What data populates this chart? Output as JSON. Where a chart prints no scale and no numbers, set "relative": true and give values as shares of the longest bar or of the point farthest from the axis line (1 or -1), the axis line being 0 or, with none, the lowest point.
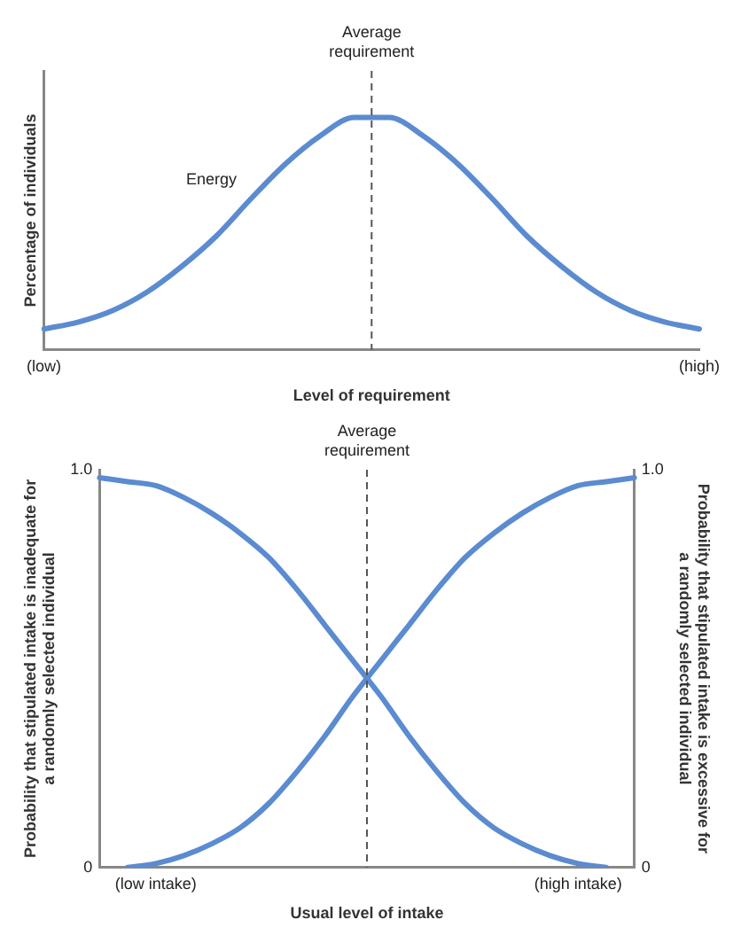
{
  "chart_data": [
    {
      "type": "line",
      "relative": true,
      "xlabel": "Level of requirement",
      "ylabel": "Percentage of individuals",
      "grid": false,
      "legend": false,
      "marker": "none",
      "line_style": "solid",
      "categories": [
        "(low)",
        null,
        null,
        null,
        null,
        null,
        null,
        null,
        null,
        null,
        null,
        null,
        null,
        null,
        null,
        null,
        null,
        null,
        null,
        "(high)"
      ],
      "series": [
        {
          "name": "Energy",
          "color": "#5b8bd0",
          "values": [
            0.09,
            0.12,
            0.17,
            0.25,
            0.36,
            0.49,
            0.65,
            0.8,
            0.92,
            1,
            1,
            0.92,
            0.8,
            0.65,
            0.49,
            0.36,
            0.25,
            0.17,
            0.12,
            0.09
          ]
        }
      ],
      "ref_lines": [
        {
          "axis": "x",
          "label": "Average requirement",
          "color": "#555555",
          "line_style": "dashed"
        }
      ]
    },
    {
      "type": "line",
      "xlabel": "Usual level of intake",
      "ylabel": "Probability that stipulated intake is inadequate for a randomly selected individual",
      "y2label": "Probability that stipulated intake is excessive for a randomly selected individual",
      "ylim": [
        0,
        1
      ],
      "yticks": [
        0,
        {
          "value": 1,
          "label": "1.0"
        }
      ],
      "y2lim": [
        0,
        1
      ],
      "y2ticks": [
        0,
        {
          "value": 1,
          "label": "1.0"
        }
      ],
      "grid": false,
      "legend": false,
      "marker": "none",
      "line_style": "solid",
      "categories": [
        null,
        null,
        "(low intake)",
        null,
        null,
        null,
        null,
        null,
        null,
        null,
        null,
        null,
        null,
        null,
        null,
        null,
        null,
        "(high intake)",
        null,
        null
      ],
      "series": [
        {
          "color": "#5b8bd0",
          "values": [
            0.98,
            0.97,
            0.96,
            0.93,
            0.89,
            0.84,
            0.78,
            0.7,
            0.61,
            0.52,
            0.43,
            0.33,
            0.24,
            0.16,
            0.1,
            0.06,
            0.03,
            0.01,
            0,
            null
          ]
        },
        {
          "color": "#5b8bd0",
          "axis": "y2",
          "values": [
            null,
            0,
            0.01,
            0.03,
            0.06,
            0.1,
            0.16,
            0.24,
            0.33,
            0.43,
            0.52,
            0.61,
            0.7,
            0.78,
            0.84,
            0.89,
            0.93,
            0.96,
            0.97,
            0.98
          ]
        }
      ],
      "ref_lines": [
        {
          "axis": "x",
          "label": "Average requirement",
          "color": "#555555",
          "line_style": "dashed"
        }
      ]
    }
  ]
}
